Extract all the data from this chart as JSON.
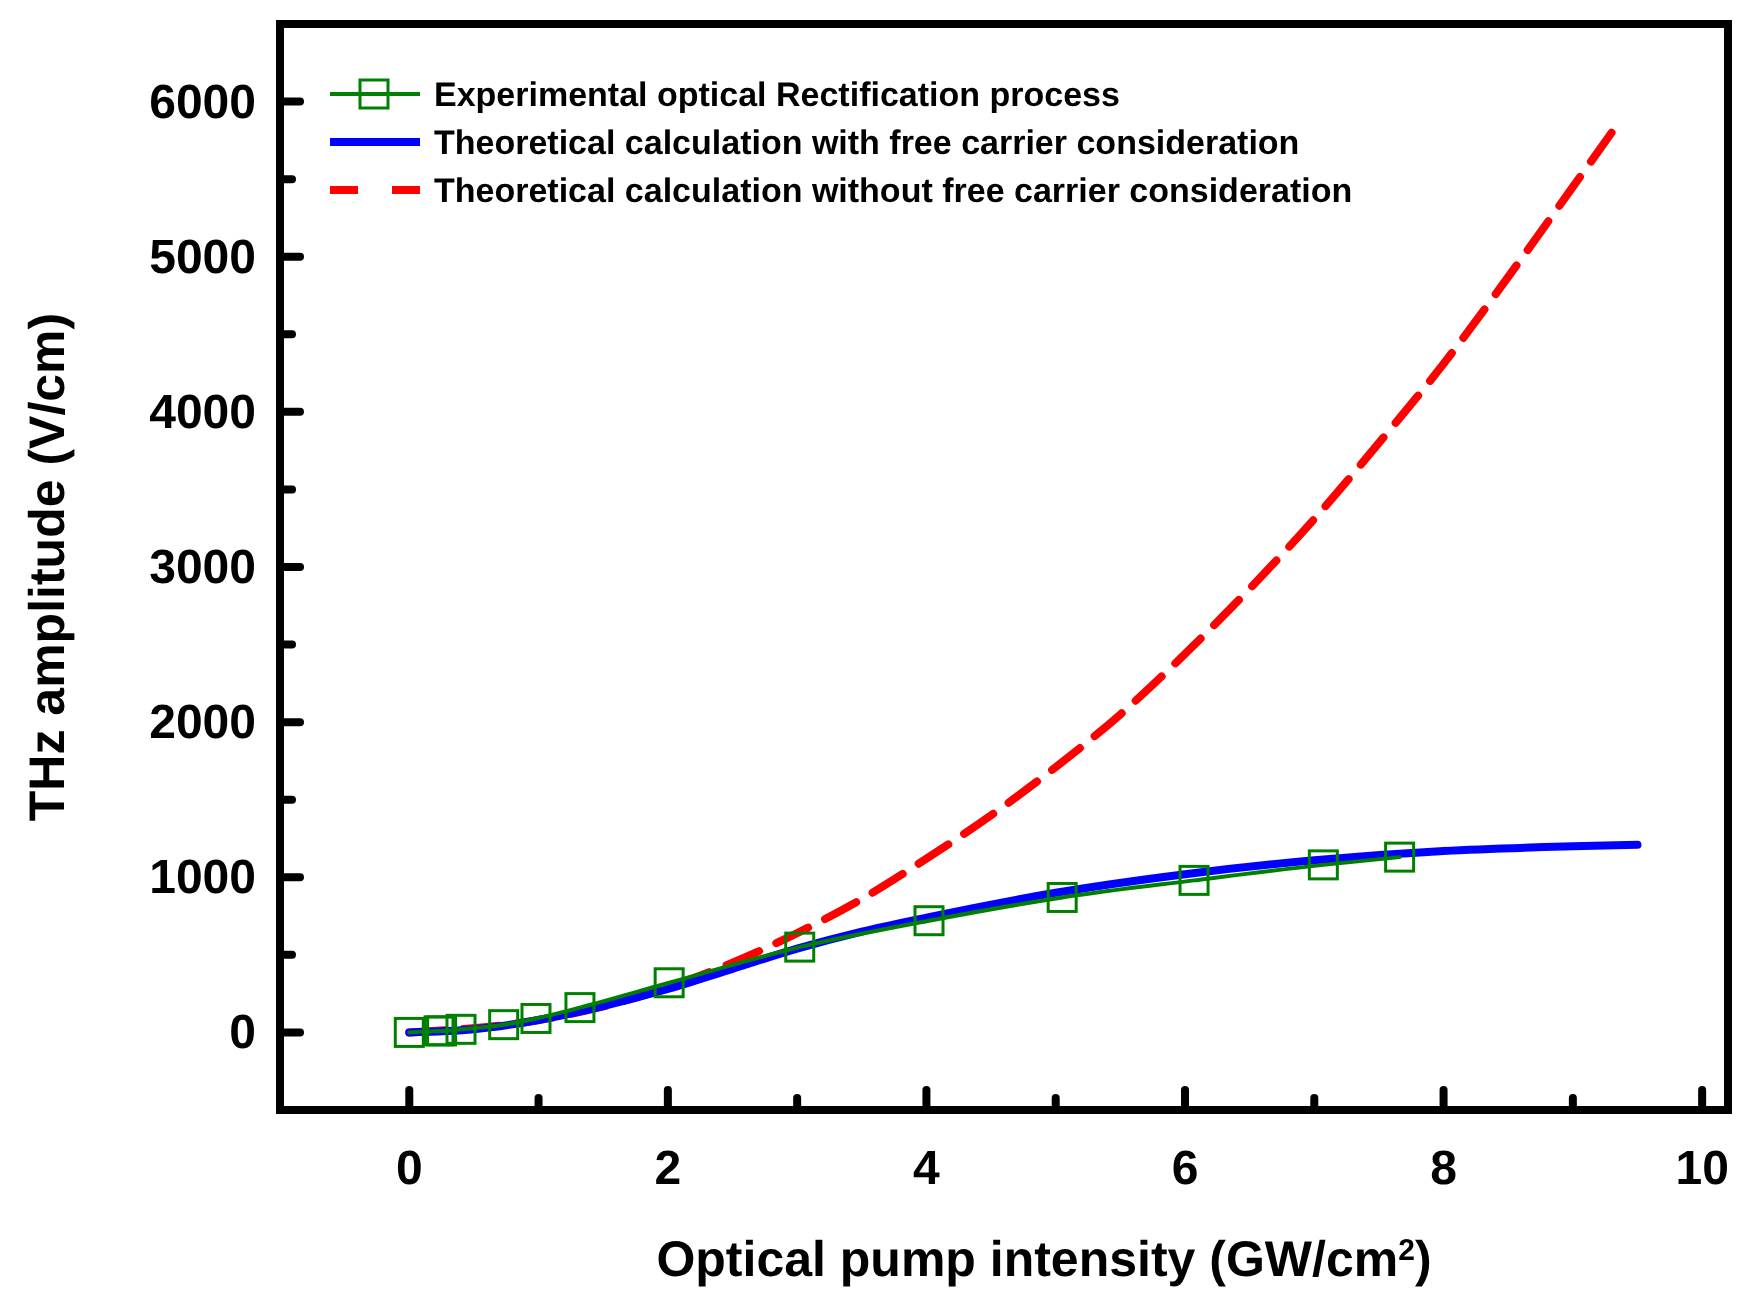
{
  "chart_data": {
    "type": "line",
    "xlabel": "Optical pump intensity (GW/cm$^{2}$)",
    "ylabel": "THz amplitude (V/cm)",
    "xlim": [
      -1,
      10.2
    ],
    "ylim": [
      -500,
      6500
    ],
    "xticks": [
      0,
      {
        "value": 1,
        "label": null
      },
      2,
      {
        "value": 3,
        "label": null
      },
      4,
      {
        "value": 5,
        "label": null
      },
      6,
      {
        "value": 7,
        "label": null
      },
      8,
      {
        "value": 9,
        "label": null
      },
      10
    ],
    "yticks": [
      {
        "value": -500,
        "label": null
      },
      0,
      {
        "value": 500,
        "label": null
      },
      1000,
      {
        "value": 1500,
        "label": null
      },
      2000,
      {
        "value": 2500,
        "label": null
      },
      3000,
      {
        "value": 3500,
        "label": null
      },
      4000,
      {
        "value": 4500,
        "label": null
      },
      5000,
      {
        "value": 5500,
        "label": null
      },
      6000
    ],
    "grid": false,
    "legend": "top left",
    "series": [
      {
        "name": "Experimental optical Rectification process",
        "color": "#008000",
        "marker": "square",
        "line_style": "solid",
        "x": [
          0,
          0.23,
          0.25,
          0.4,
          0.73,
          0.98,
          1.32,
          2.01,
          3.02,
          4.02,
          5.05,
          6.07,
          7.07,
          7.66
        ],
        "values": [
          0,
          10,
          10,
          20,
          50,
          90,
          160,
          320,
          550,
          720,
          870,
          980,
          1080,
          1130
        ]
      },
      {
        "name": "Theoretical calculation with free carrier consideration",
        "color": "#0000ff",
        "marker": "none",
        "line_style": "solid",
        "x": [
          0,
          0.5,
          1,
          1.5,
          2,
          2.5,
          3,
          3.5,
          4,
          5,
          6,
          7,
          8,
          9,
          9.5
        ],
        "values": [
          0,
          20,
          80,
          170,
          280,
          410,
          540,
          650,
          740,
          900,
          1020,
          1110,
          1170,
          1200,
          1210
        ]
      },
      {
        "name": "Theoretical calculation without free carrier consideration",
        "color": "#ff0000",
        "marker": "none",
        "line_style": "dashed",
        "x": [
          0,
          1,
          2,
          2.5,
          3,
          3.5,
          4,
          4.5,
          5,
          5.5,
          6,
          6.5,
          7,
          7.5,
          8,
          8.5,
          9,
          9.3
        ],
        "values": [
          0,
          80,
          290,
          450,
          640,
          860,
          1120,
          1400,
          1710,
          2050,
          2440,
          2860,
          3310,
          3800,
          4310,
          4870,
          5450,
          5800
        ]
      }
    ]
  }
}
